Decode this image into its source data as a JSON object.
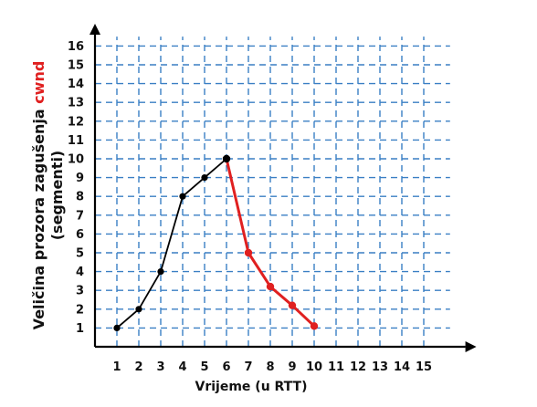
{
  "chart_data": {
    "type": "line",
    "xlabel": "Vrijeme (u RTT)",
    "ylabel_parts": [
      "Veličina prozora zagušenja ",
      "cwnd"
    ],
    "ylabel_line2": "(segmenti)",
    "x_ticks": [
      "1",
      "2",
      "3",
      "4",
      "5",
      "6",
      "7",
      "8",
      "9",
      "10",
      "11",
      "12",
      "13",
      "14",
      "15"
    ],
    "y_ticks": [
      "1",
      "2",
      "3",
      "4",
      "5",
      "6",
      "7",
      "8",
      "9",
      "10",
      "11",
      "12",
      "13",
      "14",
      "15",
      "16"
    ],
    "xlim": [
      0,
      16.5
    ],
    "ylim": [
      0,
      17
    ],
    "grid": true,
    "series": [
      {
        "color": "#000000",
        "x": [
          1,
          2,
          3,
          4,
          5,
          6
        ],
        "y": [
          1,
          2,
          4,
          8,
          9,
          10
        ]
      },
      {
        "color": "#e02020",
        "x": [
          6,
          7,
          8,
          9,
          10
        ],
        "y": [
          10,
          5,
          3.2,
          2.2,
          1.1
        ]
      }
    ]
  }
}
